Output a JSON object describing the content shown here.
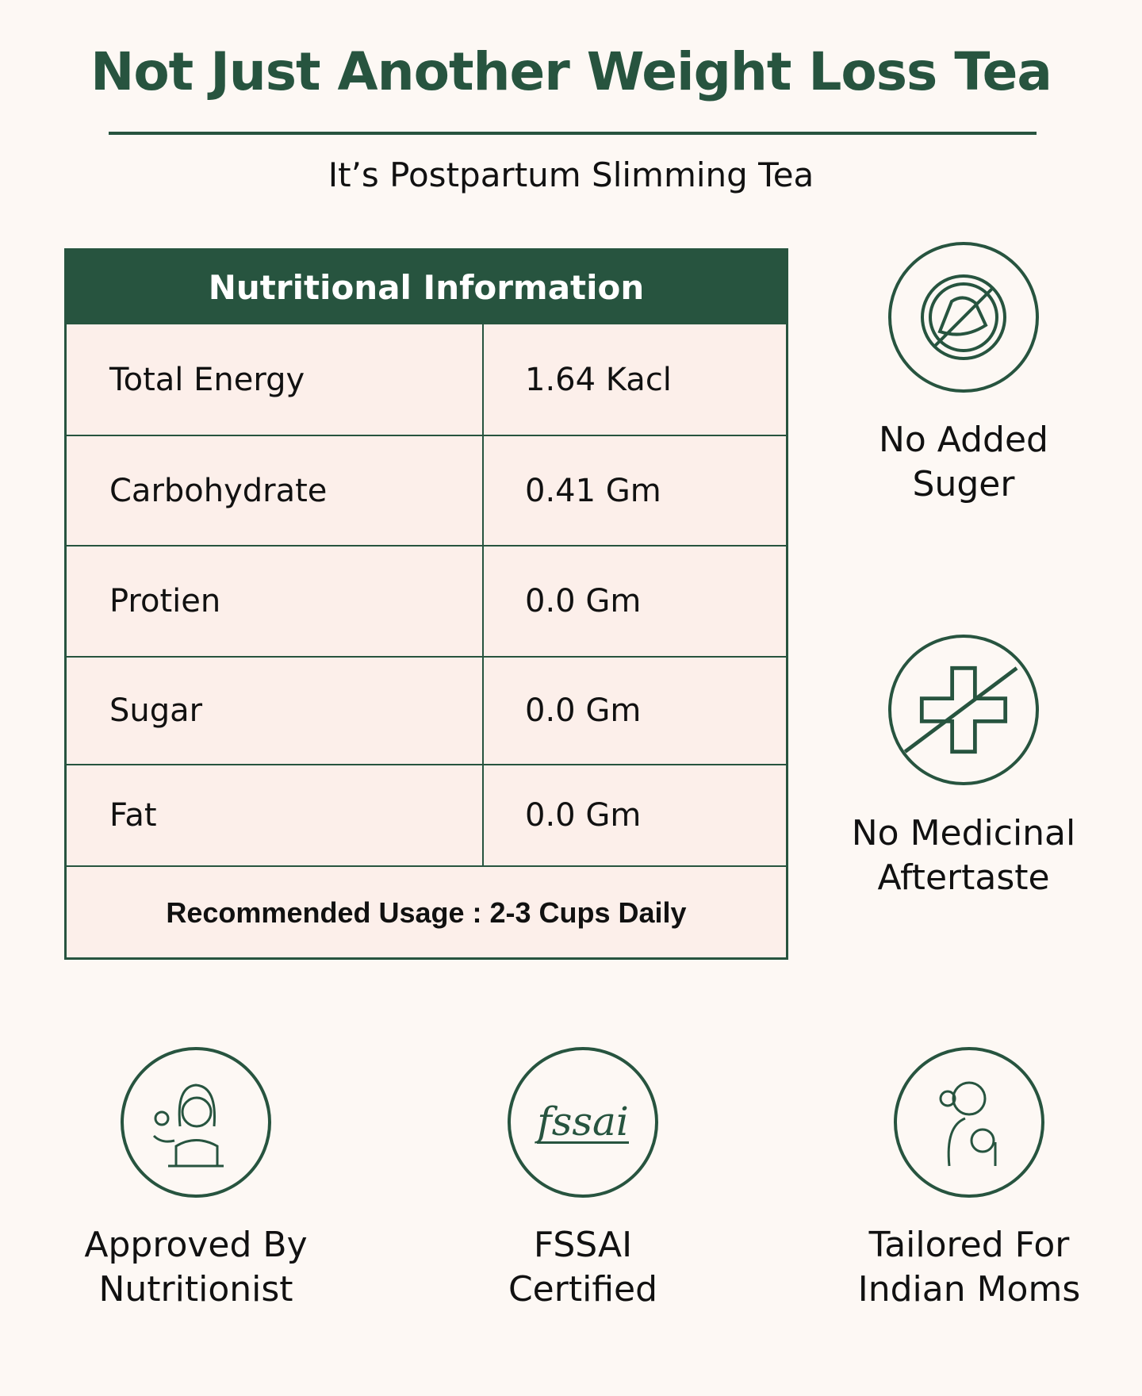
{
  "header": {
    "title": "Not Just Another Weight Loss Tea",
    "subtitle": "It’s Postpartum Slimming Tea"
  },
  "table": {
    "heading": "Nutritional Information",
    "rows": [
      {
        "label": "Total Energy",
        "value": "1.64 Kacl"
      },
      {
        "label": "Carbohydrate",
        "value": "0.41 Gm"
      },
      {
        "label": "Protien",
        "value": "0.0 Gm"
      },
      {
        "label": "Sugar",
        "value": "0.0 Gm"
      },
      {
        "label": "Fat",
        "value": "0.0 Gm"
      }
    ],
    "usage": "Recommended Usage : 2-3 Cups Daily"
  },
  "features": [
    {
      "icon": "no-sugar-icon",
      "line1": "No Added",
      "line2": "Suger"
    },
    {
      "icon": "no-medicine-icon",
      "line1": "No Medicinal",
      "line2": "Aftertaste"
    },
    {
      "icon": "nutritionist-icon",
      "line1": "Approved By",
      "line2": "Nutritionist"
    },
    {
      "icon": "fssai-logo",
      "line1": "FSSAI",
      "line2": "Certified",
      "logo_text": "fssai"
    },
    {
      "icon": "mother-baby-icon",
      "line1": "Tailored For",
      "line2": "Indian Moms"
    }
  ],
  "colors": {
    "green": "#27543f",
    "background": "#fdf8f4",
    "cell": "#fcefea"
  }
}
